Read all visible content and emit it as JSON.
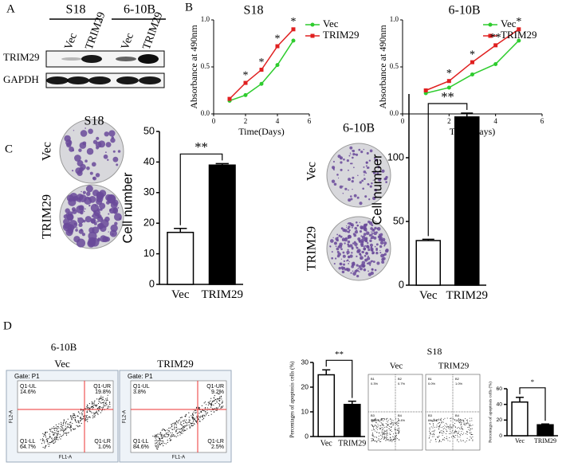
{
  "panel_labels": [
    "A",
    "B",
    "C",
    "D"
  ],
  "blot": {
    "cell_lines": [
      "S18",
      "6-10B"
    ],
    "lanes": [
      "Vec",
      "TRIM29",
      "Vec",
      "TRIM29"
    ],
    "proteins": [
      "TRIM29",
      "GAPDH"
    ]
  },
  "colony": [
    {
      "title": "S18",
      "rows": [
        "Vec",
        "TRIM29"
      ]
    },
    {
      "title": "6-10B",
      "rows": [
        "Vec",
        "TRIM29"
      ]
    }
  ],
  "flow": {
    "title": "6-10B",
    "xlabel": "FL1-A",
    "ylabel": "FL2-A",
    "plots": [
      {
        "title": "Vec",
        "gate": "Gate: P1",
        "quadrants": [
          "Q1-UL",
          "Q1-UR",
          "Q1-LL",
          "Q1-LR"
        ],
        "percents": [
          "14.6%",
          "19.8%",
          "64.7%",
          "1.0%"
        ]
      },
      {
        "title": "TRIM29",
        "gate": "Gate: P1",
        "quadrants": [
          "Q1-UL",
          "Q1-UR",
          "Q1-LL",
          "Q1-LR"
        ],
        "percents": [
          "3.8%",
          "9.2%",
          "84.6%",
          "2.5%"
        ]
      }
    ]
  },
  "flow_s18": {
    "title": "S18",
    "plots": [
      {
        "title": "Vec",
        "quadrants": [
          "B1",
          "B2",
          "B3",
          "B4"
        ],
        "percents": [
          "0.3%",
          "0.7%",
          "98.8%",
          "0.4%"
        ]
      },
      {
        "title": "TRIM29",
        "quadrants": [
          "B1",
          "B2",
          "B3",
          "B4"
        ],
        "percents": [
          "0.0%",
          "1.0%",
          "84.0%",
          "14.0%"
        ]
      }
    ]
  },
  "chart_data": [
    {
      "type": "line",
      "title": "S18",
      "x": [
        1,
        2,
        3,
        4,
        5
      ],
      "xlabel": "Time(Days)",
      "ylabel": "Absorbance at 490nm",
      "series": [
        {
          "name": "Vec",
          "color": "#2ecc2e",
          "values": [
            0.14,
            0.2,
            0.32,
            0.52,
            0.78
          ]
        },
        {
          "name": "TRIM29",
          "color": "#e02020",
          "values": [
            0.16,
            0.33,
            0.47,
            0.72,
            0.9
          ]
        }
      ],
      "significance": [
        null,
        "*",
        "*",
        "*",
        "*"
      ],
      "xlim": [
        0,
        6
      ],
      "xticks": [
        0,
        2,
        4,
        6
      ],
      "ylim": [
        0,
        1
      ],
      "yticks": [
        {
          "value": 0,
          "label": "0.0"
        },
        {
          "value": 0.5,
          "label": "0.5"
        },
        {
          "value": 1,
          "label": "1.0"
        }
      ]
    },
    {
      "type": "line",
      "title": "6-10B",
      "x": [
        1,
        2,
        3,
        4,
        5
      ],
      "xlabel": "Time(Days)",
      "ylabel": "Absorbance at 490nm",
      "series": [
        {
          "name": "Vec",
          "color": "#2ecc2e",
          "values": [
            0.22,
            0.28,
            0.42,
            0.53,
            0.78
          ]
        },
        {
          "name": "TRIM29",
          "color": "#e02020",
          "values": [
            0.25,
            0.35,
            0.55,
            0.73,
            0.9
          ]
        }
      ],
      "significance": [
        null,
        "*",
        "*",
        "**",
        "*"
      ],
      "xlim": [
        0,
        6
      ],
      "xticks": [
        0,
        2,
        4,
        6
      ],
      "ylim": [
        0,
        1
      ],
      "yticks": [
        {
          "value": 0,
          "label": "0.0"
        },
        {
          "value": 0.5,
          "label": "0.5"
        },
        {
          "value": 1,
          "label": "1.0"
        }
      ]
    },
    {
      "type": "bar",
      "categories": [
        "Vec",
        "TRIM29"
      ],
      "values": [
        17,
        39
      ],
      "errors": [
        1.3,
        0.5
      ],
      "colors": [
        "#ffffff",
        "#000000"
      ],
      "significance": "**",
      "ylabel": "Cell number",
      "ylim": [
        0,
        50
      ],
      "yticks": [
        0,
        10,
        20,
        30,
        40,
        50
      ]
    },
    {
      "type": "bar",
      "categories": [
        "Vec",
        "TRIM29"
      ],
      "values": [
        35,
        132
      ],
      "errors": [
        1,
        3
      ],
      "colors": [
        "#ffffff",
        "#000000"
      ],
      "significance": "**",
      "ylabel": "Cell number",
      "ylim": [
        0,
        150
      ],
      "yticks": [
        0,
        50,
        100
      ]
    },
    {
      "type": "bar",
      "categories": [
        "Vec",
        "TRIM29"
      ],
      "values": [
        25,
        13
      ],
      "errors": [
        2,
        1.3
      ],
      "colors": [
        "#ffffff",
        "#000000"
      ],
      "significance": "**",
      "ylabel": "Percentages of apoptosis cells (%)",
      "ylim": [
        0,
        30
      ],
      "yticks": [
        0,
        10,
        20,
        30
      ]
    },
    {
      "type": "bar",
      "categories": [
        "Vec",
        "TRIM29"
      ],
      "values": [
        43,
        14
      ],
      "errors": [
        6,
        1
      ],
      "colors": [
        "#ffffff",
        "#000000"
      ],
      "significance": "*",
      "ylabel": "Percentages of apoptosis cells (%)",
      "ylim": [
        0,
        60
      ],
      "yticks": [
        0,
        20,
        40,
        60
      ]
    }
  ]
}
